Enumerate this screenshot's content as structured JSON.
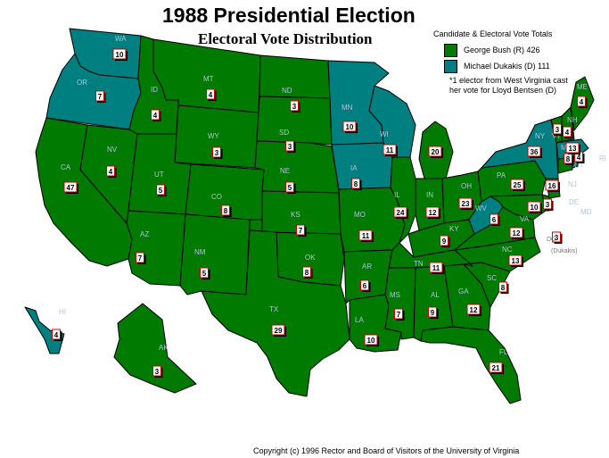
{
  "title": "1988 Presidential Election",
  "subtitle": "Electoral Vote Distribution",
  "legend": {
    "heading": "Candidate & Electoral Vote Totals",
    "items": [
      {
        "label": "George Bush (R) 426",
        "color": "#007a00"
      },
      {
        "label": "Michael Dukakis (D) 111",
        "color": "#007f80"
      }
    ],
    "note_line1": "*1 elector from West Virginia cast",
    "note_line2": "her vote for Lloyd Bentsen (D)"
  },
  "colors": {
    "republican": "#007a00",
    "democrat": "#007f80",
    "border": "#000000"
  },
  "states": [
    {
      "abbr": "WA",
      "ev": "10",
      "party": "D"
    },
    {
      "abbr": "OR",
      "ev": "7",
      "party": "D"
    },
    {
      "abbr": "CA",
      "ev": "47",
      "party": "R"
    },
    {
      "abbr": "NV",
      "ev": "4",
      "party": "R"
    },
    {
      "abbr": "ID",
      "ev": "4",
      "party": "R"
    },
    {
      "abbr": "MT",
      "ev": "4",
      "party": "R"
    },
    {
      "abbr": "WY",
      "ev": "3",
      "party": "R"
    },
    {
      "abbr": "UT",
      "ev": "5",
      "party": "R"
    },
    {
      "abbr": "AZ",
      "ev": "7",
      "party": "R"
    },
    {
      "abbr": "CO",
      "ev": "8",
      "party": "R"
    },
    {
      "abbr": "NM",
      "ev": "5",
      "party": "R"
    },
    {
      "abbr": "ND",
      "ev": "3",
      "party": "R"
    },
    {
      "abbr": "SD",
      "ev": "3",
      "party": "R"
    },
    {
      "abbr": "NE",
      "ev": "5",
      "party": "R"
    },
    {
      "abbr": "KS",
      "ev": "7",
      "party": "R"
    },
    {
      "abbr": "OK",
      "ev": "8",
      "party": "R"
    },
    {
      "abbr": "TX",
      "ev": "29",
      "party": "R"
    },
    {
      "abbr": "MN",
      "ev": "10",
      "party": "D"
    },
    {
      "abbr": "IA",
      "ev": "8",
      "party": "D"
    },
    {
      "abbr": "MO",
      "ev": "11",
      "party": "R"
    },
    {
      "abbr": "AR",
      "ev": "6",
      "party": "R"
    },
    {
      "abbr": "LA",
      "ev": "10",
      "party": "R"
    },
    {
      "abbr": "WI",
      "ev": "11",
      "party": "D"
    },
    {
      "abbr": "IL",
      "ev": "24",
      "party": "R"
    },
    {
      "abbr": "MI",
      "ev": "20",
      "party": "R"
    },
    {
      "abbr": "IN",
      "ev": "12",
      "party": "R"
    },
    {
      "abbr": "OH",
      "ev": "23",
      "party": "R"
    },
    {
      "abbr": "KY",
      "ev": "9",
      "party": "R"
    },
    {
      "abbr": "TN",
      "ev": "11",
      "party": "R"
    },
    {
      "abbr": "MS",
      "ev": "7",
      "party": "R"
    },
    {
      "abbr": "AL",
      "ev": "9",
      "party": "R"
    },
    {
      "abbr": "GA",
      "ev": "12",
      "party": "R"
    },
    {
      "abbr": "FL",
      "ev": "21",
      "party": "R"
    },
    {
      "abbr": "SC",
      "ev": "8",
      "party": "R"
    },
    {
      "abbr": "NC",
      "ev": "13",
      "party": "R"
    },
    {
      "abbr": "VA",
      "ev": "12",
      "party": "R"
    },
    {
      "abbr": "WV",
      "ev": "6",
      "party": "D"
    },
    {
      "abbr": "PA",
      "ev": "25",
      "party": "R"
    },
    {
      "abbr": "NY",
      "ev": "36",
      "party": "D"
    },
    {
      "abbr": "MD",
      "ev": "10",
      "party": "R"
    },
    {
      "abbr": "DE",
      "ev": "3",
      "party": "R"
    },
    {
      "abbr": "NJ",
      "ev": "16",
      "party": "R"
    },
    {
      "abbr": "CT",
      "ev": "8",
      "party": "R"
    },
    {
      "abbr": "RI",
      "ev": "4",
      "party": "D"
    },
    {
      "abbr": "MA",
      "ev": "13",
      "party": "D"
    },
    {
      "abbr": "VT",
      "ev": "3",
      "party": "R"
    },
    {
      "abbr": "NH",
      "ev": "4",
      "party": "R"
    },
    {
      "abbr": "ME",
      "ev": "4",
      "party": "R"
    },
    {
      "abbr": "AK",
      "ev": "3",
      "party": "R"
    },
    {
      "abbr": "HI",
      "ev": "4",
      "party": "D"
    },
    {
      "abbr": "DC",
      "ev": "3",
      "party": "D"
    }
  ],
  "dc_note": "(Dukakis)",
  "copyright": "Copyright (c) 1996 Rector and Board of Visitors of the University of Virginia"
}
